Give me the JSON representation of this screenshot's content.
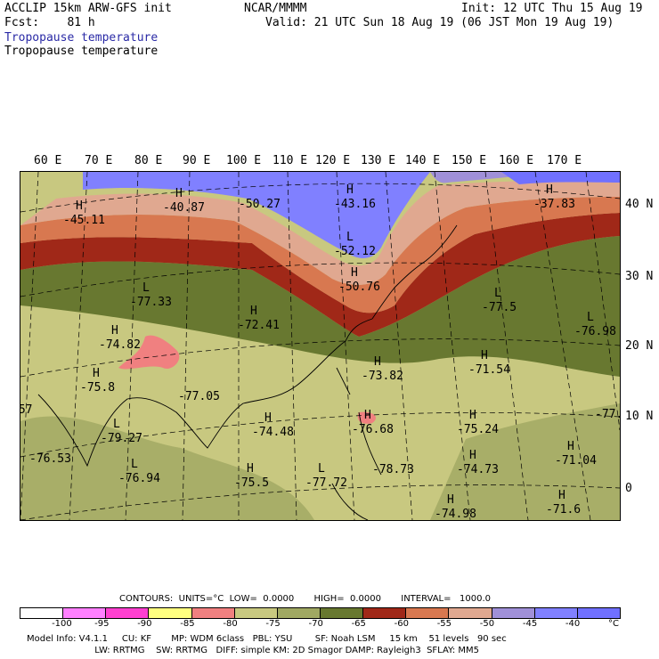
{
  "header": {
    "line1_left": "ACCLIP 15km ARW-GFS init",
    "line1_center": "NCAR/MMMM",
    "line1_right": "Init: 12 UTC Thu 15 Aug 19",
    "line2_left": "Fcst:    81 h",
    "line2_right": "Valid: 21 UTC Sun 18 Aug 19 (06 JST Mon 19 Aug 19)",
    "field1": "Tropopause temperature",
    "field2": "Tropopause temperature"
  },
  "lon_labels": [
    "60 E",
    "70 E",
    "80 E",
    "90 E",
    "100 E",
    "110 E",
    "120 E",
    "130 E",
    "140 E",
    "150 E",
    "160 E",
    "170 E"
  ],
  "lat_labels": [
    "40 N",
    "30 N",
    "20 N",
    "10 N",
    "0"
  ],
  "map_labels": [
    {
      "letter": "H",
      "value": "-45.11"
    },
    {
      "letter": "H",
      "value": "-40.87"
    },
    {
      "letter": "",
      "value": "-50.27"
    },
    {
      "letter": "H",
      "value": "-43.16"
    },
    {
      "letter": "H",
      "value": "-37.83"
    },
    {
      "letter": "L",
      "value": "-52.12"
    },
    {
      "letter": "H",
      "value": "-50.76"
    },
    {
      "letter": "L",
      "value": "-77.33"
    },
    {
      "letter": "H",
      "value": "-72.41"
    },
    {
      "letter": "H",
      "value": "-74.82"
    },
    {
      "letter": "L",
      "value": "-77.5"
    },
    {
      "letter": "L",
      "value": "-76.98"
    },
    {
      "letter": "H",
      "value": "-73.82"
    },
    {
      "letter": "H",
      "value": "-71.54"
    },
    {
      "letter": "H",
      "value": "-75.8"
    },
    {
      "letter": "",
      "value": "-77.05"
    },
    {
      "letter": "",
      "value": ".57"
    },
    {
      "letter": "",
      "value": "-77."
    },
    {
      "letter": "L",
      "value": "-79.27"
    },
    {
      "letter": "H",
      "value": "-74.48"
    },
    {
      "letter": "H",
      "value": "-76.68"
    },
    {
      "letter": "H",
      "value": "-75.24"
    },
    {
      "letter": "",
      "value": "-76.53"
    },
    {
      "letter": "L",
      "value": "-76.94"
    },
    {
      "letter": "",
      "value": "-78.73"
    },
    {
      "letter": "H",
      "value": "-74.73"
    },
    {
      "letter": "H",
      "value": "-71.04"
    },
    {
      "letter": "H",
      "value": "-75.5"
    },
    {
      "letter": "L",
      "value": "-77.72"
    },
    {
      "letter": "H",
      "value": "-74.98"
    },
    {
      "letter": "H",
      "value": "-71.6"
    }
  ],
  "contours_line": "CONTOURS:  UNITS=°C  LOW=  0.0000       HIGH=  0.0000       INTERVAL=   1000.0",
  "scale": {
    "colors": [
      "#ffffff",
      "#ff80ff",
      "#ff40d0",
      "#ffff80",
      "#f08080",
      "#c8c880",
      "#a0a862",
      "#687830",
      "#a02818",
      "#d87850",
      "#e0a890",
      "#a090d8",
      "#8080ff",
      "#7070ff"
    ],
    "ticks": [
      "-100",
      "-95",
      "-90",
      "-85",
      "-80",
      "-75",
      "-70",
      "-65",
      "-60",
      "-55",
      "-50",
      "-45",
      "-40",
      "°C"
    ]
  },
  "footer": {
    "line1": "Model Info: V4.1.1     CU: KF       MP: WDM 6class   PBL: YSU        SF: Noah LSM     15 km    51 levels   90 sec",
    "line2": "                        LW: RRTMG    SW: RRTMG   DIFF: simple KM: 2D Smagor DAMP: Rayleigh3  SFLAY: MM5"
  }
}
